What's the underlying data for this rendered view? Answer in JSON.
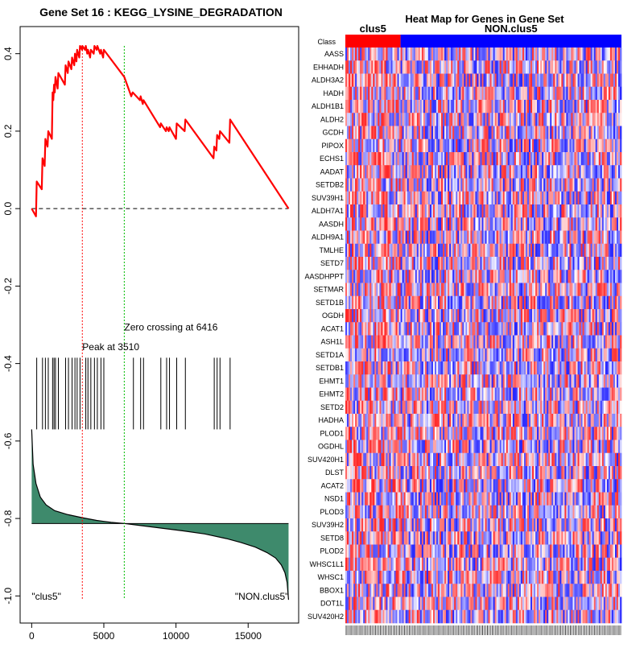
{
  "chart_data": [
    {
      "type": "line",
      "title": "Gene Set  16 : KEGG_LYSINE_DEGRADATION",
      "xlim": [
        -800,
        18500
      ],
      "ylim": [
        -1.07,
        0.47
      ],
      "x_ticks": [
        0,
        5000,
        10000,
        15000
      ],
      "x_tick_labels": [
        "0",
        "5000",
        "10000",
        "15000"
      ],
      "y_ticks": [
        0.4,
        0.2,
        0.0,
        -0.2,
        -0.4,
        -0.6,
        -0.8,
        -1.0
      ],
      "y_tick_labels": [
        "0.4",
        "0.2",
        "0.0",
        "-0.2",
        "-0.4",
        "-0.6",
        "-0.8",
        "-1.0"
      ],
      "enrichment_color": "#ff0000",
      "peak_color": "#ff0000",
      "zero_cross_color": "#00bb00",
      "fill_color": "#3e8a6c",
      "enrichment_series": {
        "name": "running enrichment score",
        "x": [
          0,
          300,
          350,
          700,
          750,
          900,
          950,
          1100,
          1150,
          1400,
          1450,
          1500,
          1550,
          1600,
          1650,
          1800,
          1850,
          2300,
          2350,
          2500,
          2550,
          2750,
          2800,
          2950,
          3000,
          3100,
          3150,
          3300,
          3350,
          3500,
          3510,
          3700,
          3750,
          3850,
          3900,
          4050,
          4100,
          4300,
          4350,
          4500,
          4550,
          4750,
          4800,
          4950,
          5000,
          6416,
          6900,
          7000,
          7500,
          7550,
          7700,
          7750,
          8900,
          8950,
          9300,
          9350,
          9500,
          9550,
          10000,
          10050,
          10600,
          10650,
          12600,
          12650,
          12800,
          12850,
          13000,
          13050,
          13700,
          13750,
          17800
        ],
        "y": [
          0.0,
          -0.02,
          0.07,
          0.05,
          0.13,
          0.11,
          0.18,
          0.16,
          0.2,
          0.18,
          0.3,
          0.28,
          0.32,
          0.3,
          0.34,
          0.31,
          0.35,
          0.32,
          0.37,
          0.35,
          0.38,
          0.36,
          0.39,
          0.37,
          0.4,
          0.38,
          0.41,
          0.39,
          0.42,
          0.41,
          0.42,
          0.41,
          0.42,
          0.4,
          0.41,
          0.39,
          0.41,
          0.4,
          0.42,
          0.41,
          0.42,
          0.4,
          0.41,
          0.39,
          0.41,
          0.34,
          0.29,
          0.3,
          0.28,
          0.29,
          0.27,
          0.28,
          0.21,
          0.22,
          0.2,
          0.21,
          0.2,
          0.21,
          0.18,
          0.22,
          0.2,
          0.23,
          0.13,
          0.16,
          0.15,
          0.19,
          0.18,
          0.2,
          0.17,
          0.23,
          0.0
        ]
      },
      "hit_positions": [
        350,
        750,
        950,
        1150,
        1450,
        1550,
        1650,
        1850,
        2350,
        2550,
        2800,
        3000,
        3150,
        3350,
        3750,
        3900,
        4100,
        4350,
        4550,
        4800,
        5000,
        7050,
        7550,
        7750,
        8950,
        9350,
        9550,
        10050,
        10650,
        12650,
        12850,
        13050,
        13750
      ],
      "ranked_metric": {
        "x": [
          0,
          100,
          300,
          600,
          1000,
          1600,
          2500,
          3500,
          4500,
          5500,
          6416,
          7500,
          9000,
          10500,
          12000,
          13500,
          14500,
          15500,
          16300,
          16900,
          17300,
          17550,
          17700,
          17800
        ],
        "y": [
          -0.57,
          -0.66,
          -0.71,
          -0.745,
          -0.765,
          -0.78,
          -0.79,
          -0.798,
          -0.805,
          -0.81,
          -0.813,
          -0.818,
          -0.825,
          -0.832,
          -0.84,
          -0.852,
          -0.862,
          -0.874,
          -0.888,
          -0.902,
          -0.92,
          -0.94,
          -0.965,
          -1.01
        ],
        "baseline": -0.813
      },
      "annotations": {
        "peak_x": 3510,
        "peak_label": "Peak at 3510",
        "zero_cross_x": 6416,
        "zero_cross_label": "Zero crossing at 6416",
        "left_class_label": "\"clus5\"",
        "right_class_label": "\"NON.clus5\""
      }
    },
    {
      "type": "heatmap",
      "title": "Heat Map for Genes in Gene Set",
      "class_row_label": "Class",
      "class_groups": [
        {
          "name": "clus5",
          "color": "#ff0000",
          "fraction": 0.2
        },
        {
          "name": "NON.clus5",
          "color": "#0000ff",
          "fraction": 0.8
        }
      ],
      "genes": [
        "AASS",
        "EHHADH",
        "ALDH3A2",
        "HADH",
        "ALDH1B1",
        "ALDH2",
        "GCDH",
        "PIPOX",
        "ECHS1",
        "AADAT",
        "SETDB2",
        "SUV39H1",
        "ALDH7A1",
        "AASDH",
        "ALDH9A1",
        "TMLHE",
        "SETD7",
        "AASDHPPT",
        "SETMAR",
        "SETD1B",
        "OGDH",
        "ACAT1",
        "ASH1L",
        "SETD1A",
        "SETDB1",
        "EHMT1",
        "EHMT2",
        "SETD2",
        "HADHA",
        "PLOD1",
        "OGDHL",
        "SUV420H1",
        "DLST",
        "ACAT2",
        "NSD1",
        "PLOD3",
        "SUV39H2",
        "SETD8",
        "PLOD2",
        "WHSC1L1",
        "WHSC1",
        "BBOX1",
        "DOT1L",
        "SUV420H2"
      ],
      "positive_color": "#ff0000",
      "negative_color": "#0000ff",
      "sample_count": 170
    }
  ]
}
